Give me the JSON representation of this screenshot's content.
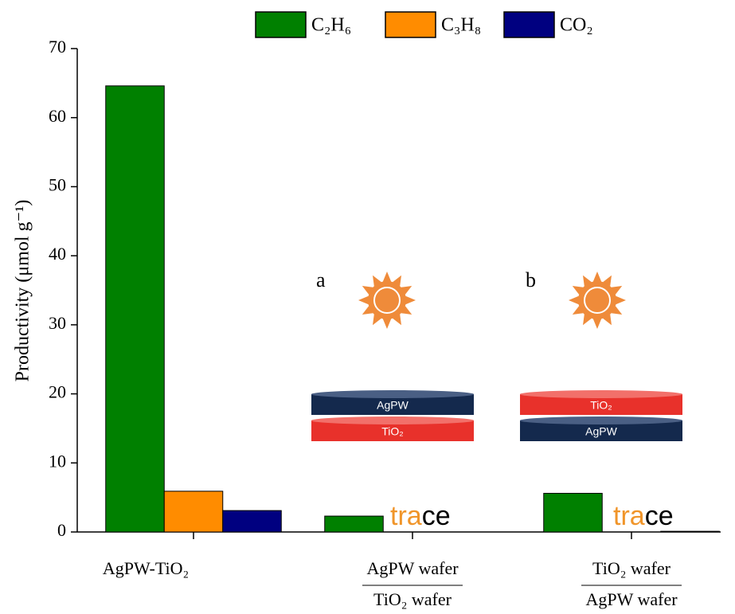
{
  "chart_data": {
    "type": "bar",
    "y_label": "Productivity (μmol g⁻¹)",
    "categories": [
      "AgPW-TiO₂",
      [
        "AgPW wafer",
        "TiO₂ wafer"
      ],
      [
        "TiO₂ wafer",
        "AgPW wafer"
      ]
    ],
    "series": [
      {
        "name": "C₂H₆",
        "color": "#008000",
        "values": [
          64.6,
          2.3,
          5.6
        ]
      },
      {
        "name": "C₃H₈",
        "color": "#ff8c00",
        "values": [
          5.9,
          null,
          null
        ]
      },
      {
        "name": "CO₂",
        "color": "#000080",
        "values": [
          3.1,
          null,
          0.1
        ]
      }
    ],
    "trace_labels": [
      [
        "tra",
        "ce"
      ],
      [
        "tra",
        "ce"
      ]
    ],
    "insets": [
      {
        "label": "a",
        "top": "AgPW",
        "bottom": "TiO₂"
      },
      {
        "label": "b",
        "top": "TiO₂",
        "bottom": "AgPW"
      }
    ],
    "ylim": [
      0,
      70
    ],
    "yticks": [
      0,
      10,
      20,
      30,
      40,
      50,
      60,
      70
    ]
  }
}
